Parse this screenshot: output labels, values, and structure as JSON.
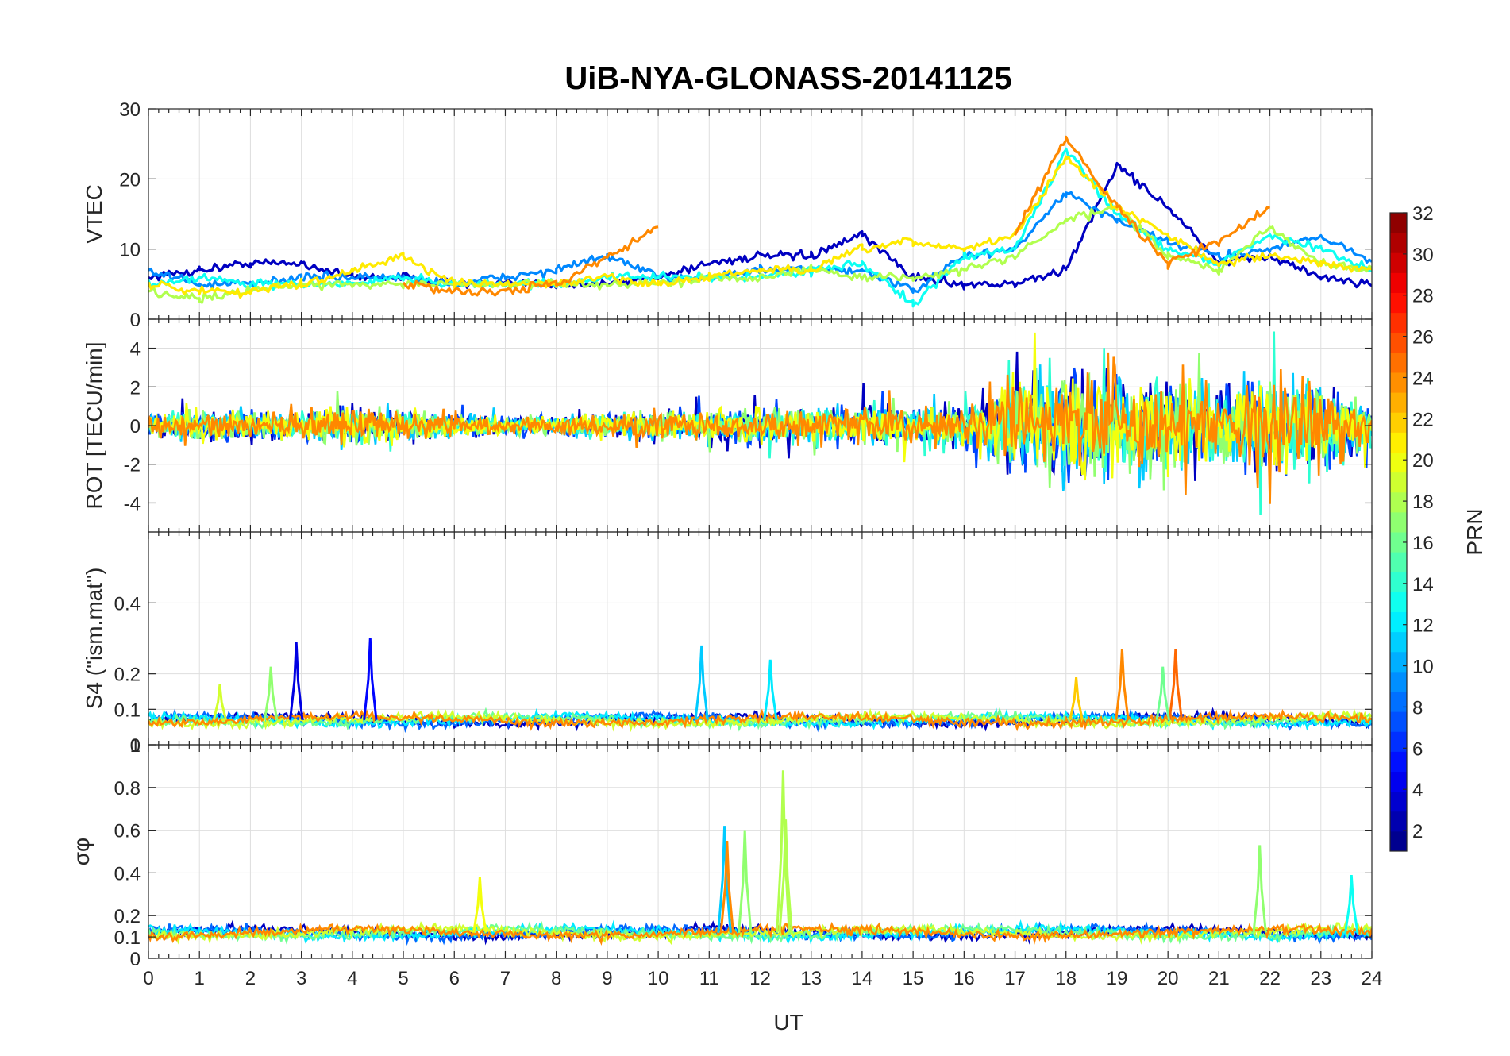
{
  "chart_data": {
    "type": "line",
    "title": "UiB-NYA-GLONASS-20141125",
    "xlabel": "UT",
    "xlim": [
      0,
      24
    ],
    "x_ticks": [
      "0",
      "1",
      "2",
      "3",
      "4",
      "5",
      "6",
      "7",
      "8",
      "9",
      "10",
      "11",
      "12",
      "13",
      "14",
      "15",
      "16",
      "17",
      "18",
      "19",
      "20",
      "21",
      "22",
      "23",
      "24"
    ],
    "grid": true,
    "colorbar": {
      "label": "PRN",
      "range": [
        1,
        32
      ],
      "ticks": [
        "2",
        "4",
        "6",
        "8",
        "10",
        "12",
        "14",
        "16",
        "18",
        "20",
        "22",
        "24",
        "26",
        "28",
        "30",
        "32"
      ],
      "colormap": "jet",
      "location": "right"
    },
    "panels": [
      {
        "id": "vtec",
        "ylabel": "VTEC",
        "ylim": [
          0,
          30
        ],
        "y_ticks": [
          "0",
          "10",
          "20",
          "30"
        ],
        "series_sampled": [
          {
            "prn": 3,
            "x": [
              0,
              1,
              2,
              3,
              4,
              5,
              6,
              7,
              8,
              9,
              10,
              11,
              12,
              13,
              14,
              15,
              16,
              17,
              18,
              19,
              20,
              21,
              22,
              23,
              24
            ],
            "y": [
              6,
              7,
              8,
              8,
              6,
              6,
              5,
              5,
              5,
              5,
              6,
              8,
              9,
              9,
              12,
              6,
              5,
              5,
              7,
              22,
              16,
              8,
              9,
              6,
              5
            ]
          },
          {
            "prn": 9,
            "x": [
              0,
              1,
              2,
              3,
              4,
              5,
              6,
              7,
              8,
              9,
              10,
              11,
              12,
              13,
              14,
              15,
              16,
              17,
              18,
              19,
              20,
              21,
              22,
              23,
              24
            ],
            "y": [
              7,
              5,
              5,
              6,
              6,
              6,
              5,
              6,
              7,
              9,
              6,
              6,
              7,
              7,
              7,
              4,
              9,
              10,
              18,
              14,
              11,
              9,
              10,
              12,
              8
            ]
          },
          {
            "prn": 13,
            "x": [
              0,
              1,
              2,
              3,
              4,
              5,
              6,
              7,
              8,
              9,
              10,
              11,
              12,
              13,
              14,
              15,
              16,
              17,
              18,
              19,
              20,
              21,
              22,
              23,
              24
            ],
            "y": [
              5,
              6,
              5,
              5,
              5,
              6,
              5,
              5,
              5,
              6,
              6,
              6,
              6,
              7,
              8,
              2,
              9,
              10,
              24,
              15,
              10,
              8,
              12,
              10,
              7
            ]
          },
          {
            "prn": 18,
            "x": [
              0,
              1,
              2,
              3,
              4,
              5,
              6,
              7,
              8,
              9,
              10,
              11,
              12,
              13,
              14,
              15,
              16,
              17,
              18,
              19,
              20,
              21,
              22,
              23,
              24
            ],
            "y": [
              4,
              3,
              4,
              5,
              5,
              5,
              5,
              5,
              5,
              5,
              5,
              6,
              6,
              7,
              6,
              6,
              7,
              9,
              14,
              16,
              9,
              7,
              13,
              8,
              7
            ]
          },
          {
            "prn": 21,
            "x": [
              0,
              1,
              2,
              3,
              4,
              5,
              6,
              7,
              8,
              9,
              10,
              11,
              12,
              13,
              14,
              15,
              16,
              17,
              18,
              19,
              20,
              21,
              22,
              23,
              24
            ],
            "y": [
              5,
              4,
              4,
              5,
              7,
              9,
              5,
              5,
              5,
              6,
              5,
              6,
              7,
              7,
              10,
              11,
              10,
              12,
              23,
              16,
              12,
              8,
              9,
              8,
              7
            ]
          },
          {
            "prn": 24,
            "x": [
              0,
              1,
              2,
              3,
              4,
              5,
              6,
              7,
              8,
              9,
              10,
              11,
              12,
              13,
              14,
              15,
              16,
              17,
              18,
              19,
              20,
              21,
              22,
              23,
              24
            ],
            "y": [
              null,
              null,
              null,
              null,
              null,
              5,
              4,
              4,
              5,
              9,
              13,
              null,
              null,
              null,
              null,
              null,
              null,
              12,
              26,
              16,
              8,
              11,
              16,
              null,
              null
            ]
          }
        ]
      },
      {
        "id": "rot",
        "ylabel": "ROT [TECU/min]",
        "ylim": [
          -5.5,
          5.5
        ],
        "y_ticks": [
          "-4",
          "-2",
          "0",
          "2",
          "4"
        ],
        "note": "noise amplitude (TECU/min) per UT hour, sampled",
        "envelope": [
          1.2,
          1.6,
          1.5,
          1.5,
          2.2,
          1.6,
          1.2,
          1.0,
          0.9,
          1.3,
          1.5,
          1.7,
          1.9,
          1.6,
          2.2,
          2.0,
          2.0,
          5.5,
          5.5,
          5.5,
          5.0,
          4.0,
          5.5,
          5.0,
          2.0
        ]
      },
      {
        "id": "s4",
        "ylabel": "S4 (\"ism.mat\")",
        "ylim": [
          0,
          0.6
        ],
        "y_ticks": [
          "0",
          "0.1",
          "0.2",
          "0.4"
        ],
        "peaks": [
          {
            "prn": 19,
            "ut": 1.4,
            "value": 0.17
          },
          {
            "prn": 17,
            "ut": 2.4,
            "value": 0.22
          },
          {
            "prn": 4,
            "ut": 2.9,
            "value": 0.29
          },
          {
            "prn": 5,
            "ut": 4.35,
            "value": 0.3
          },
          {
            "prn": 11,
            "ut": 10.85,
            "value": 0.28
          },
          {
            "prn": 12,
            "ut": 12.2,
            "value": 0.24
          },
          {
            "prn": 22,
            "ut": 18.2,
            "value": 0.19
          },
          {
            "prn": 24,
            "ut": 19.1,
            "value": 0.27
          },
          {
            "prn": 25,
            "ut": 20.15,
            "value": 0.27
          },
          {
            "prn": 16,
            "ut": 19.9,
            "value": 0.22
          }
        ],
        "baseline": 0.07
      },
      {
        "id": "sigma_phi",
        "ylabel": "σφ",
        "ylim": [
          0,
          1
        ],
        "y_ticks": [
          "0",
          "0.1",
          "0.2",
          "0.4",
          "0.6",
          "0.8",
          "1"
        ],
        "peaks": [
          {
            "prn": 11,
            "ut": 11.3,
            "value": 0.62
          },
          {
            "prn": 24,
            "ut": 11.35,
            "value": 0.55
          },
          {
            "prn": 17,
            "ut": 11.7,
            "value": 0.6
          },
          {
            "prn": 18,
            "ut": 12.45,
            "value": 0.88
          },
          {
            "prn": 18,
            "ut": 12.5,
            "value": 0.65
          },
          {
            "prn": 17,
            "ut": 21.8,
            "value": 0.53
          },
          {
            "prn": 20,
            "ut": 6.5,
            "value": 0.38
          },
          {
            "prn": 13,
            "ut": 23.6,
            "value": 0.39
          }
        ],
        "baseline": 0.12
      }
    ]
  }
}
